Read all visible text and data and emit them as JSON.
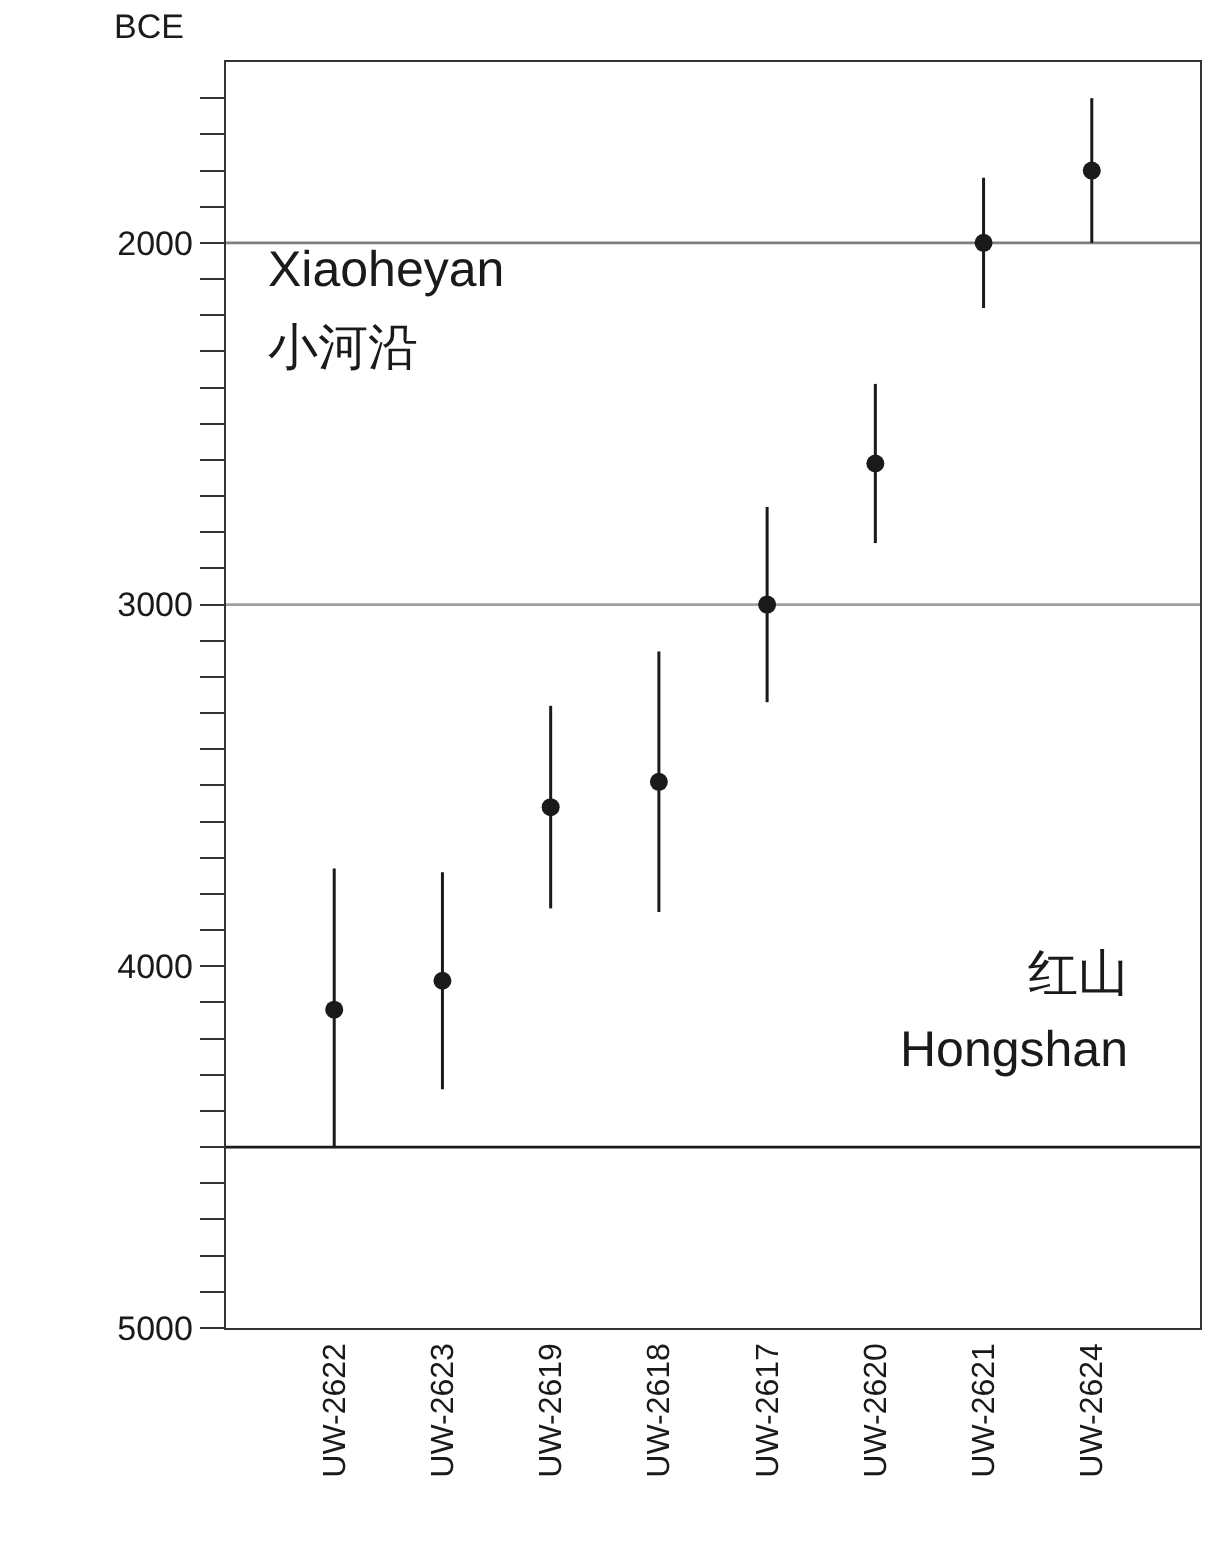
{
  "chart_data": {
    "type": "scatter",
    "ylabel": "BCE",
    "categories": [
      "UW-2622",
      "UW-2623",
      "UW-2619",
      "UW-2618",
      "UW-2617",
      "UW-2620",
      "UW-2621",
      "UW-2624"
    ],
    "series": [
      {
        "color": "#1a1a1a",
        "values": [
          4120,
          4040,
          3560,
          3490,
          3000,
          2610,
          2000,
          1800
        ],
        "errors": [
          [
            3730,
            4500
          ],
          [
            3740,
            4340
          ],
          [
            3280,
            3840
          ],
          [
            3130,
            3850
          ],
          [
            2730,
            3270
          ],
          [
            2390,
            2830
          ],
          [
            1820,
            2180
          ],
          [
            1600,
            2000
          ]
        ]
      }
    ],
    "ylim": [
      5000,
      1500
    ],
    "yticks": [
      {
        "value": 1600,
        "label": null
      },
      {
        "value": 1700,
        "label": null
      },
      {
        "value": 1800,
        "label": null
      },
      {
        "value": 1900,
        "label": null
      },
      2000,
      {
        "value": 2100,
        "label": null
      },
      {
        "value": 2200,
        "label": null
      },
      {
        "value": 2300,
        "label": null
      },
      {
        "value": 2400,
        "label": null
      },
      {
        "value": 2500,
        "label": null
      },
      {
        "value": 2600,
        "label": null
      },
      {
        "value": 2700,
        "label": null
      },
      {
        "value": 2800,
        "label": null
      },
      {
        "value": 2900,
        "label": null
      },
      3000,
      {
        "value": 3100,
        "label": null
      },
      {
        "value": 3200,
        "label": null
      },
      {
        "value": 3300,
        "label": null
      },
      {
        "value": 3400,
        "label": null
      },
      {
        "value": 3500,
        "label": null
      },
      {
        "value": 3600,
        "label": null
      },
      {
        "value": 3700,
        "label": null
      },
      {
        "value": 3800,
        "label": null
      },
      {
        "value": 3900,
        "label": null
      },
      4000,
      {
        "value": 4100,
        "label": null
      },
      {
        "value": 4200,
        "label": null
      },
      {
        "value": 4300,
        "label": null
      },
      {
        "value": 4400,
        "label": null
      },
      {
        "value": 4500,
        "label": null
      },
      {
        "value": 4600,
        "label": null
      },
      {
        "value": 4700,
        "label": null
      },
      {
        "value": 4800,
        "label": null
      },
      {
        "value": 4900,
        "label": null
      },
      5000
    ],
    "ref_lines": [
      {
        "axis": "y",
        "value": 2000,
        "color": "#808080"
      },
      {
        "axis": "y",
        "value": 3000,
        "color": "#a0a0a0"
      },
      {
        "axis": "y",
        "value": 4500,
        "color": "#1a1a1a"
      }
    ],
    "annotations": [
      "Xiaoheyan",
      "小河沿",
      "红山",
      "Hongshan"
    ],
    "marker": "circle",
    "grid": false,
    "legend": false
  }
}
